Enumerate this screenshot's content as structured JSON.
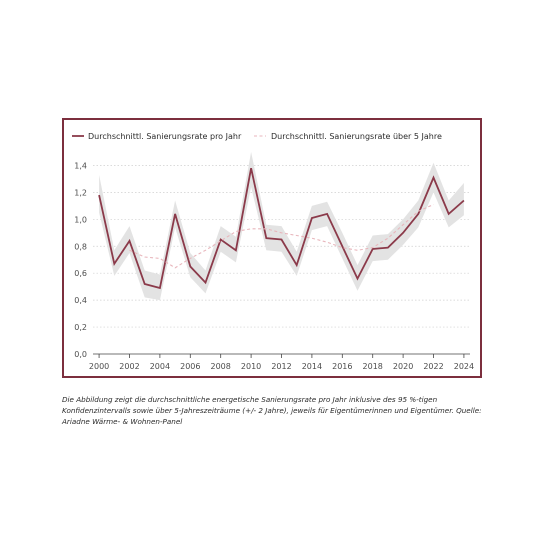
{
  "chart_data": {
    "type": "line",
    "series": [
      {
        "name": "Durchschnittl. Sanierungsrate pro Jahr",
        "color": "#8b3a4a",
        "style": "solid",
        "x": [
          2000,
          2001,
          2002,
          2003,
          2004,
          2005,
          2006,
          2007,
          2008,
          2009,
          2010,
          2011,
          2012,
          2013,
          2014,
          2015,
          2016,
          2017,
          2018,
          2019,
          2020,
          2021,
          2022,
          2023,
          2024
        ],
        "values": [
          1.18,
          0.67,
          0.84,
          0.52,
          0.49,
          1.04,
          0.65,
          0.53,
          0.85,
          0.77,
          1.38,
          0.86,
          0.85,
          0.66,
          1.01,
          1.04,
          0.8,
          0.56,
          0.78,
          0.79,
          0.9,
          1.04,
          1.31,
          1.04,
          1.14
        ]
      },
      {
        "name": "Durchschnittl. Sanierungsrate über 5 Jahre",
        "color": "#e8b6bc",
        "style": "dashed",
        "x": [
          2002,
          2003,
          2004,
          2005,
          2006,
          2007,
          2008,
          2009,
          2010,
          2011,
          2012,
          2013,
          2014,
          2015,
          2016,
          2017,
          2018,
          2019,
          2020,
          2021,
          2022
        ],
        "values": [
          0.77,
          0.72,
          0.71,
          0.64,
          0.71,
          0.77,
          0.84,
          0.91,
          0.93,
          0.93,
          0.9,
          0.88,
          0.86,
          0.83,
          0.79,
          0.77,
          0.79,
          0.86,
          0.96,
          1.06,
          1.11
        ]
      }
    ],
    "confidence_band": {
      "x": [
        2000,
        2001,
        2002,
        2003,
        2004,
        2005,
        2006,
        2007,
        2008,
        2009,
        2010,
        2011,
        2012,
        2013,
        2014,
        2015,
        2016,
        2017,
        2018,
        2019,
        2020,
        2021,
        2022,
        2023,
        2024
      ],
      "lower": [
        1.05,
        0.58,
        0.75,
        0.42,
        0.4,
        0.94,
        0.57,
        0.45,
        0.76,
        0.68,
        1.24,
        0.77,
        0.76,
        0.58,
        0.92,
        0.95,
        0.71,
        0.47,
        0.69,
        0.7,
        0.81,
        0.94,
        1.2,
        0.94,
        1.03
      ],
      "upper": [
        1.33,
        0.77,
        0.95,
        0.62,
        0.59,
        1.14,
        0.75,
        0.62,
        0.95,
        0.87,
        1.5,
        0.96,
        0.95,
        0.76,
        1.1,
        1.13,
        0.9,
        0.66,
        0.88,
        0.89,
        1.0,
        1.14,
        1.42,
        1.14,
        1.27
      ],
      "color": "#e3e3e3"
    },
    "xticks": [
      "2000",
      "2002",
      "2004",
      "2006",
      "2008",
      "2010",
      "2012",
      "2014",
      "2016",
      "2018",
      "2020",
      "2022",
      "2024"
    ],
    "yticks": [
      "0,0",
      "0,2",
      "0,4",
      "0,6",
      "0,8",
      "1,0",
      "1,2",
      "1,4"
    ],
    "xlim": [
      1999.6,
      2024.4
    ],
    "ylim": [
      0,
      1.5
    ],
    "xlabel": "",
    "ylabel": "",
    "grid": "horizontal dotted",
    "legend_position": "top-left",
    "frame_color": "#7c2f3e"
  },
  "caption": "Die Abbildung zeigt die durchschnittliche energetische Sanierungsrate pro Jahr inklusive des 95 %-tigen Konfidenzintervalls sowie über 5-Jahreszeiträume (+/- 2 Jahre), jeweils für Eigentümerinnen und Eigentümer. Quelle: Ariadne Wärme- & Wohnen-Panel"
}
